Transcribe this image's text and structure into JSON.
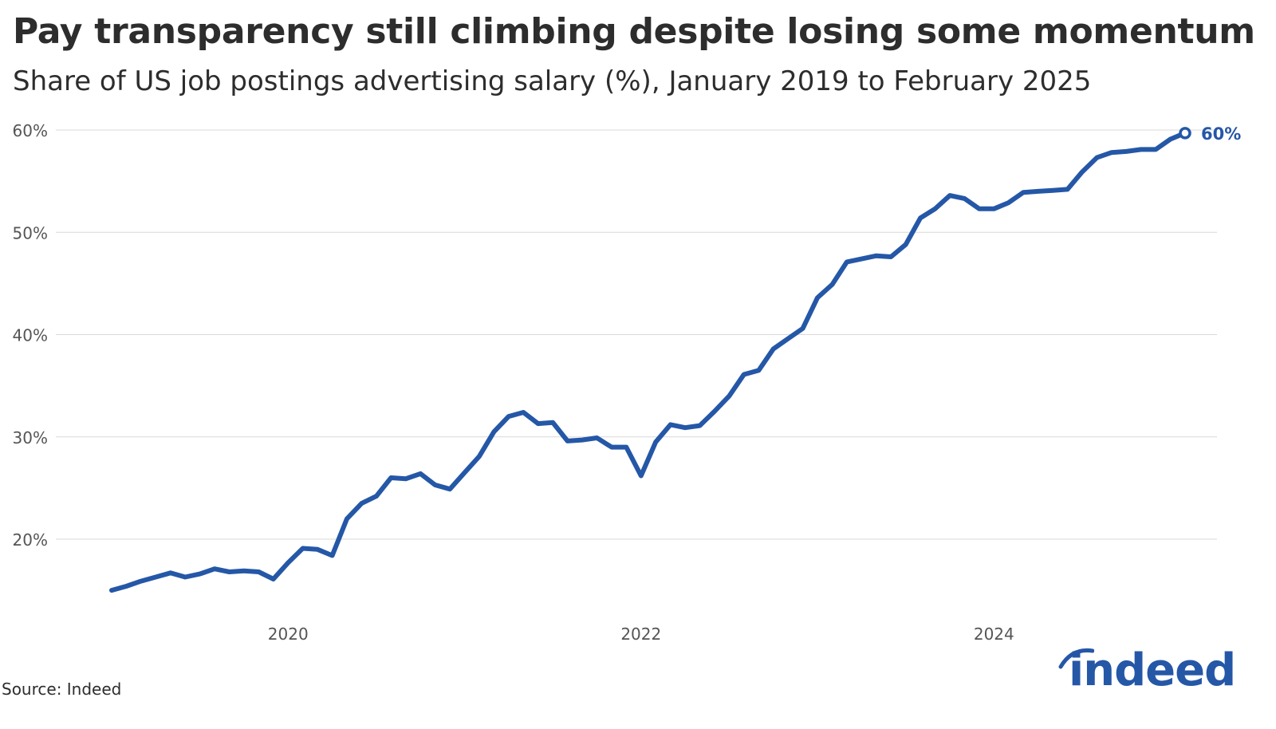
{
  "header": {
    "title": "Pay transparency still climbing despite losing some momentum",
    "subtitle": "Share of US job postings advertising salary (%), January 2019 to February 2025"
  },
  "footer": {
    "source": "Source: Indeed",
    "logo_text": "indeed"
  },
  "colors": {
    "line": "#2557a7",
    "grid": "#d9d9d9",
    "text": "#2d2d2d",
    "tick": "#555555"
  },
  "chart_data": {
    "type": "line",
    "title": "Pay transparency still climbing despite losing some momentum",
    "subtitle": "Share of US job postings advertising salary (%), January 2019 to February 2025",
    "xlabel": "",
    "ylabel": "",
    "x_start": "2019-01",
    "x_end": "2025-02",
    "ylim": [
      10,
      60
    ],
    "y_ticks": [
      20,
      30,
      40,
      50,
      60
    ],
    "y_tick_labels": [
      "20%",
      "30%",
      "40%",
      "50%",
      "60%"
    ],
    "x_ticks": [
      "2020-01",
      "2022-01",
      "2024-01"
    ],
    "x_tick_labels": [
      "2020",
      "2022",
      "2024"
    ],
    "grid": true,
    "end_label": "60%",
    "series": [
      {
        "x": [
          "2019-01",
          "2019-02",
          "2019-03",
          "2019-04",
          "2019-05",
          "2019-06",
          "2019-07",
          "2019-08",
          "2019-09",
          "2019-10",
          "2019-11",
          "2019-12",
          "2020-01",
          "2020-02",
          "2020-03",
          "2020-04",
          "2020-05",
          "2020-06",
          "2020-07",
          "2020-08",
          "2020-09",
          "2020-10",
          "2020-11",
          "2020-12",
          "2021-01",
          "2021-02",
          "2021-03",
          "2021-04",
          "2021-05",
          "2021-06",
          "2021-07",
          "2021-08",
          "2021-09",
          "2021-10",
          "2021-11",
          "2021-12",
          "2022-01",
          "2022-02",
          "2022-03",
          "2022-04",
          "2022-05",
          "2022-06",
          "2022-07",
          "2022-08",
          "2022-09",
          "2022-10",
          "2022-11",
          "2022-12",
          "2023-01",
          "2023-02",
          "2023-03",
          "2023-04",
          "2023-05",
          "2023-06",
          "2023-07",
          "2023-08",
          "2023-09",
          "2023-10",
          "2023-11",
          "2023-12",
          "2024-01",
          "2024-02",
          "2024-03",
          "2024-04",
          "2024-05",
          "2024-06",
          "2024-07",
          "2024-08",
          "2024-09",
          "2024-10",
          "2024-11",
          "2024-12",
          "2025-01",
          "2025-02"
        ],
        "values": [
          15.0,
          15.4,
          15.9,
          16.3,
          16.7,
          16.3,
          16.6,
          17.1,
          16.8,
          16.9,
          16.8,
          16.1,
          17.7,
          19.1,
          19.0,
          18.4,
          22.0,
          23.5,
          24.2,
          26.0,
          25.9,
          26.4,
          25.3,
          24.9,
          26.5,
          28.1,
          30.5,
          32.0,
          32.4,
          31.3,
          31.4,
          29.6,
          29.7,
          29.9,
          29.0,
          29.0,
          26.2,
          29.5,
          31.2,
          30.9,
          31.1,
          32.5,
          34.0,
          36.1,
          36.5,
          38.6,
          39.6,
          40.6,
          43.6,
          44.9,
          47.1,
          47.4,
          47.7,
          47.6,
          48.8,
          51.4,
          52.3,
          53.6,
          53.3,
          52.3,
          52.3,
          52.9,
          53.9,
          54.0,
          54.1,
          54.2,
          55.9,
          57.3,
          57.8,
          57.9,
          58.1,
          58.1,
          59.1,
          59.7
        ]
      }
    ]
  }
}
